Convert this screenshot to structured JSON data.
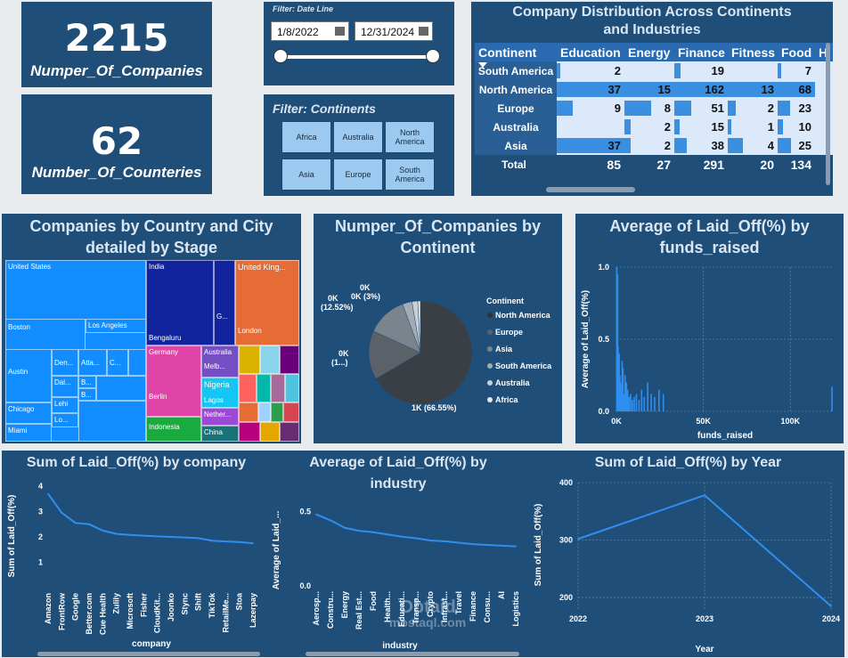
{
  "kpis": {
    "companies": {
      "value": "2215",
      "label": "Numper_Of_Companies"
    },
    "countries": {
      "value": "62",
      "label": "Number_Of_Counteries"
    }
  },
  "date_filter": {
    "title": "Filter: Date Line",
    "start": "1/8/2022",
    "end": "12/31/2024"
  },
  "continent_filter": {
    "title": "Filter: Continents",
    "options": [
      "Africa",
      "Australia",
      "North America",
      "Asia",
      "Europe",
      "South America"
    ]
  },
  "matrix": {
    "title": "Company Distribution Across Continents and Industries",
    "corner": "Continent",
    "columns": [
      "Education",
      "Energy",
      "Finance",
      "Fitness",
      "Food",
      "H"
    ],
    "rows": [
      {
        "label": "South America",
        "values": [
          "2",
          "",
          "19",
          "",
          "7",
          ""
        ]
      },
      {
        "label": "North America",
        "values": [
          "37",
          "15",
          "162",
          "13",
          "68",
          ""
        ]
      },
      {
        "label": "Europe",
        "values": [
          "9",
          "8",
          "51",
          "2",
          "23",
          ""
        ]
      },
      {
        "label": "Australia",
        "values": [
          "",
          "2",
          "15",
          "1",
          "10",
          ""
        ]
      },
      {
        "label": "Asia",
        "values": [
          "37",
          "2",
          "38",
          "4",
          "25",
          ""
        ]
      }
    ],
    "total_label": "Total",
    "totals": [
      "85",
      "27",
      "291",
      "20",
      "134",
      ""
    ]
  },
  "treemap": {
    "title": "Companies by Country and City detailed by Stage",
    "labels": {
      "us": "United States",
      "boston": "Boston",
      "la": "Los Angeles",
      "austin": "Austin",
      "den": "Den...",
      "atl": "Atla...",
      "c": "C...",
      "dal": "Dal...",
      "b1": "B...",
      "b2": "B...",
      "lehi": "Lehi",
      "lo": "Lo...",
      "chicago": "Chicago",
      "miami": "Miami",
      "india": "India",
      "g": "G...",
      "bengaluru": "Bengaluru",
      "uk": "United King...",
      "london": "London",
      "germany": "Germany",
      "berlin": "Berlin",
      "australia": "Australia",
      "melb": "Melb...",
      "nigeria": "Nigeria",
      "lagos": "Lagos",
      "nether": "Nether...",
      "indonesia": "Indonesia",
      "china": "China"
    }
  },
  "chart_data": [
    {
      "type": "pie",
      "title": "Numper_Of_Companies by Continent",
      "legend_title": "Continent",
      "categories": [
        "North America",
        "Europe",
        "Asia",
        "South America",
        "Australia",
        "Africa"
      ],
      "values": [
        66.55,
        15.3,
        12.52,
        3.0,
        1.8,
        0.83
      ],
      "value_labels": [
        "1K (66.55%)",
        "0K (1...)",
        "0K (12.52%)",
        "0K (3%)",
        "0K",
        ""
      ],
      "colors": [
        "#3a3f45",
        "#5a6169",
        "#7b838c",
        "#a3abb3",
        "#c9cfd5",
        "#e4e8ec"
      ]
    },
    {
      "type": "bar",
      "title": "Average of Laid_Off(%) by funds_raised",
      "xlabel": "funds_raised",
      "ylabel": "Average of Laid_Off(%)",
      "xlim": [
        0,
        125000
      ],
      "ylim": [
        0,
        1.0
      ],
      "x_ticks": [
        "0K",
        "50K",
        "100K"
      ],
      "y_ticks": [
        "0.0",
        "0.5",
        "1.0"
      ],
      "x": [
        200,
        400,
        700,
        1000,
        1300,
        1600,
        2000,
        2400,
        2800,
        3300,
        3800,
        4300,
        5000,
        5800,
        6500,
        7300,
        8200,
        9200,
        10300,
        11500,
        13000,
        14500,
        16000,
        18000,
        20000,
        22000,
        24500,
        27000,
        124000
      ],
      "values": [
        1.0,
        0.55,
        0.95,
        0.45,
        0.3,
        0.4,
        0.25,
        0.2,
        0.15,
        0.35,
        0.3,
        0.12,
        0.25,
        0.2,
        0.15,
        0.1,
        0.12,
        0.08,
        0.1,
        0.12,
        0.08,
        0.15,
        0.1,
        0.2,
        0.12,
        0.1,
        0.15,
        0.12,
        0.17
      ]
    },
    {
      "type": "line",
      "title": "Sum of Laid_Off(%) by company",
      "xlabel": "company",
      "ylabel": "Sum of Laid_Off(%)",
      "ylim": [
        0,
        4
      ],
      "y_ticks": [
        "1",
        "2",
        "3",
        "4"
      ],
      "categories": [
        "Amazon",
        "FrontRow",
        "Google",
        "Better.com",
        "Cue Health",
        "Zulily",
        "Microsoft",
        "Fisher",
        "CloudKit...",
        "Joonko",
        "Stync",
        "Shift",
        "TikTok",
        "RetailMe...",
        "Stoa",
        "Lazerpay"
      ],
      "values": [
        3.7,
        2.95,
        2.55,
        2.5,
        2.25,
        2.12,
        2.08,
        2.05,
        2.02,
        2.0,
        1.98,
        1.95,
        1.85,
        1.82,
        1.8,
        1.75
      ]
    },
    {
      "type": "line",
      "title": "Average of Laid_Off(%) by industry",
      "xlabel": "industry",
      "ylabel": "Average of Laid_...",
      "ylim": [
        0,
        0.55
      ],
      "y_ticks": [
        "0.0",
        "0.5"
      ],
      "categories": [
        "Aerosp...",
        "Constru...",
        "Energy",
        "Real Est...",
        "Food",
        "Health...",
        "Educati...",
        "Transp...",
        "Crypto",
        "Infrast...",
        "Travel",
        "Finance",
        "Consu...",
        "AI",
        "Logistics"
      ],
      "values": [
        0.48,
        0.44,
        0.39,
        0.37,
        0.36,
        0.345,
        0.33,
        0.32,
        0.305,
        0.3,
        0.29,
        0.28,
        0.275,
        0.27,
        0.265
      ]
    },
    {
      "type": "line",
      "title": "Sum of Laid_Off(%) by Year",
      "xlabel": "Year",
      "ylabel": "Sum of Laid_Off(%)",
      "ylim": [
        180,
        400
      ],
      "y_ticks": [
        "200",
        "300",
        "400"
      ],
      "categories": [
        "2022",
        "2023",
        "2024"
      ],
      "values": [
        302,
        378,
        185
      ]
    }
  ],
  "watermark": {
    "main": "Obtaid",
    "sub": "mostaql.com"
  }
}
